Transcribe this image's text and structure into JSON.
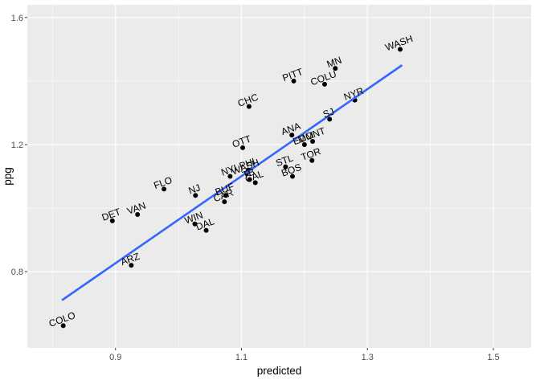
{
  "chart_data": {
    "type": "scatter",
    "xlabel": "predicted",
    "ylabel": "ppg",
    "xlim": [
      0.76,
      1.56
    ],
    "ylim": [
      0.56,
      1.64
    ],
    "x_ticks": [
      0.9,
      1.1,
      1.3,
      1.5
    ],
    "x_tick_labels": [
      "0.9",
      "1.1",
      "1.3",
      "1.5"
    ],
    "y_ticks": [
      0.8,
      1.2,
      1.6
    ],
    "y_tick_labels": [
      "0.8",
      "1.2",
      "1.6"
    ],
    "grid": true,
    "legend": "none",
    "point_color": "#000000",
    "line_color": "#3366FF",
    "panel_background": "#EBEBEB",
    "gridline_color": "#FFFFFF",
    "fit_line": {
      "x": [
        0.815,
        1.355
      ],
      "y": [
        0.71,
        1.45
      ]
    },
    "points": [
      {
        "label": "WASH",
        "x": 1.352,
        "y": 1.5
      },
      {
        "label": "MN",
        "x": 1.249,
        "y": 1.44
      },
      {
        "label": "COLU",
        "x": 1.232,
        "y": 1.39
      },
      {
        "label": "PITT",
        "x": 1.183,
        "y": 1.4
      },
      {
        "label": "NYR",
        "x": 1.28,
        "y": 1.34
      },
      {
        "label": "CHC",
        "x": 1.112,
        "y": 1.32
      },
      {
        "label": "SJ",
        "x": 1.24,
        "y": 1.28
      },
      {
        "label": "ANA",
        "x": 1.18,
        "y": 1.23
      },
      {
        "label": "EDM",
        "x": 1.2,
        "y": 1.2
      },
      {
        "label": "MONT",
        "x": 1.213,
        "y": 1.21
      },
      {
        "label": "OTT",
        "x": 1.102,
        "y": 1.19
      },
      {
        "label": "TOR",
        "x": 1.212,
        "y": 1.15
      },
      {
        "label": "NYI",
        "x": 1.082,
        "y": 1.1
      },
      {
        "label": "WASH",
        "x": 1.108,
        "y": 1.11
      },
      {
        "label": "PHI",
        "x": 1.111,
        "y": 1.12
      },
      {
        "label": "STL",
        "x": 1.17,
        "y": 1.13
      },
      {
        "label": "BOS",
        "x": 1.181,
        "y": 1.1
      },
      {
        "label": "TB",
        "x": 1.113,
        "y": 1.09
      },
      {
        "label": "CAL",
        "x": 1.122,
        "y": 1.08
      },
      {
        "label": "BUF",
        "x": 1.075,
        "y": 1.04
      },
      {
        "label": "CAR",
        "x": 1.073,
        "y": 1.02
      },
      {
        "label": "NJ",
        "x": 1.027,
        "y": 1.04
      },
      {
        "label": "FLO",
        "x": 0.977,
        "y": 1.06
      },
      {
        "label": "VAN",
        "x": 0.935,
        "y": 0.98
      },
      {
        "label": "DET",
        "x": 0.895,
        "y": 0.96
      },
      {
        "label": "WIN",
        "x": 1.026,
        "y": 0.95
      },
      {
        "label": "DAL",
        "x": 1.044,
        "y": 0.93
      },
      {
        "label": "ARZ",
        "x": 0.925,
        "y": 0.82
      },
      {
        "label": "COLO",
        "x": 0.817,
        "y": 0.63
      }
    ]
  }
}
